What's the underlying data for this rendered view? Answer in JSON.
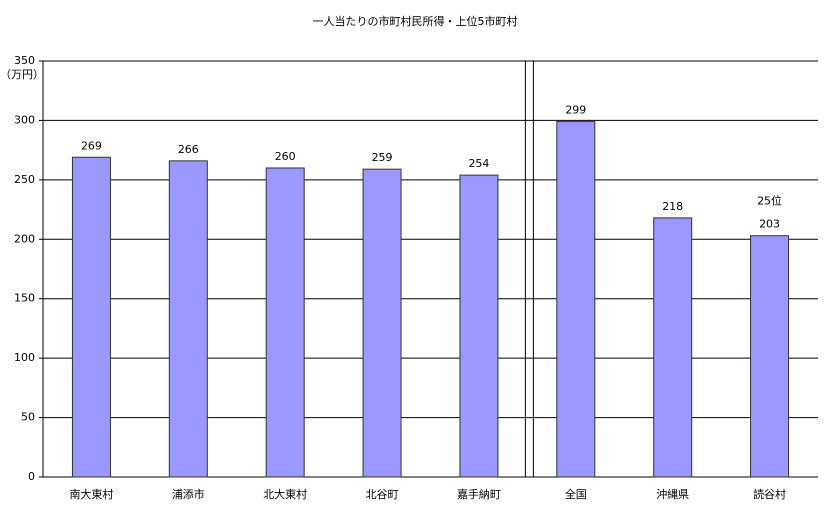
{
  "chart_data": {
    "type": "bar",
    "title": "一人当たりの市町村民所得・上位5市町村",
    "y_unit": "（万円）",
    "categories": [
      "南大東村",
      "浦添市",
      "北大東村",
      "北谷町",
      "嘉手納町",
      "全国",
      "沖縄県",
      "読谷村"
    ],
    "values": [
      269,
      266,
      260,
      259,
      254,
      299,
      218,
      203
    ],
    "color": "#9999ff",
    "ylim": [
      0,
      350
    ],
    "yticks": [
      0,
      50,
      100,
      150,
      200,
      250,
      300,
      350
    ],
    "grid": true,
    "annotation": "25位"
  }
}
